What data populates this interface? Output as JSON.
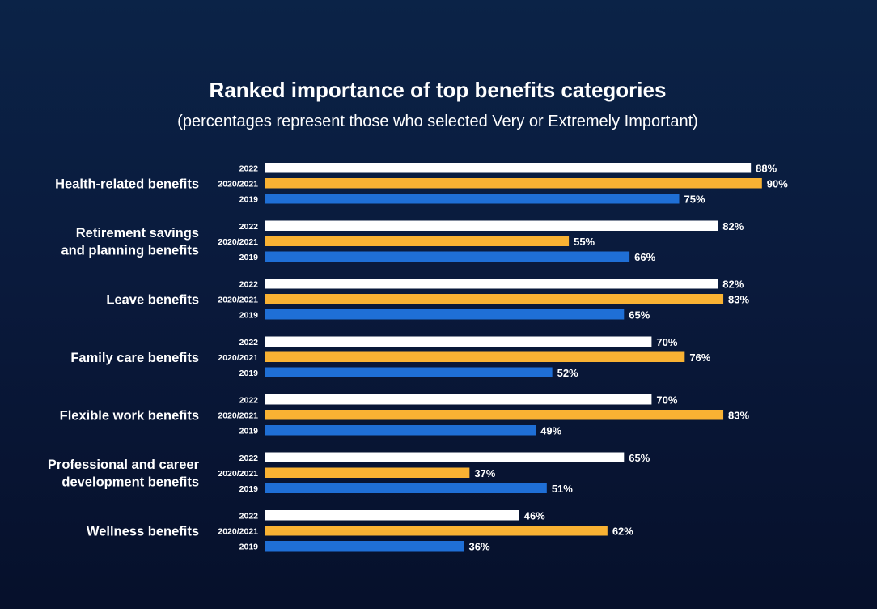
{
  "chart_data": {
    "type": "bar",
    "orientation": "horizontal",
    "title": "Ranked importance of top benefits categories",
    "subtitle": "(percentages represent those who selected Very or Extremely Important)",
    "categories": [
      [
        "Health-related benefits"
      ],
      [
        "Retirement savings",
        "and planning benefits"
      ],
      [
        "Leave benefits"
      ],
      [
        "Family care benefits"
      ],
      [
        "Flexible work benefits"
      ],
      [
        "Professional and career",
        "development benefits"
      ],
      [
        "Wellness benefits"
      ]
    ],
    "series": [
      {
        "name": "2022",
        "color": "#ffffff",
        "values": [
          88,
          82,
          82,
          70,
          70,
          65,
          46
        ],
        "labels": [
          "88%",
          "82%",
          "82%",
          "70%",
          "70%",
          "65%",
          "46%"
        ]
      },
      {
        "name": "2020/2021",
        "color": "#f9b233",
        "values": [
          90,
          55,
          83,
          76,
          83,
          37,
          62
        ],
        "labels": [
          "90%",
          "55%",
          "83%",
          "76%",
          "83%",
          "37%",
          "62%"
        ]
      },
      {
        "name": "2019",
        "color": "#1f6fd6",
        "values": [
          75,
          66,
          65,
          52,
          49,
          51,
          36
        ],
        "labels": [
          "75%",
          "66%",
          "65%",
          "52%",
          "49%",
          "51%",
          "36%"
        ]
      }
    ],
    "xlim": [
      0,
      100
    ],
    "grid": false,
    "legend": "none"
  }
}
